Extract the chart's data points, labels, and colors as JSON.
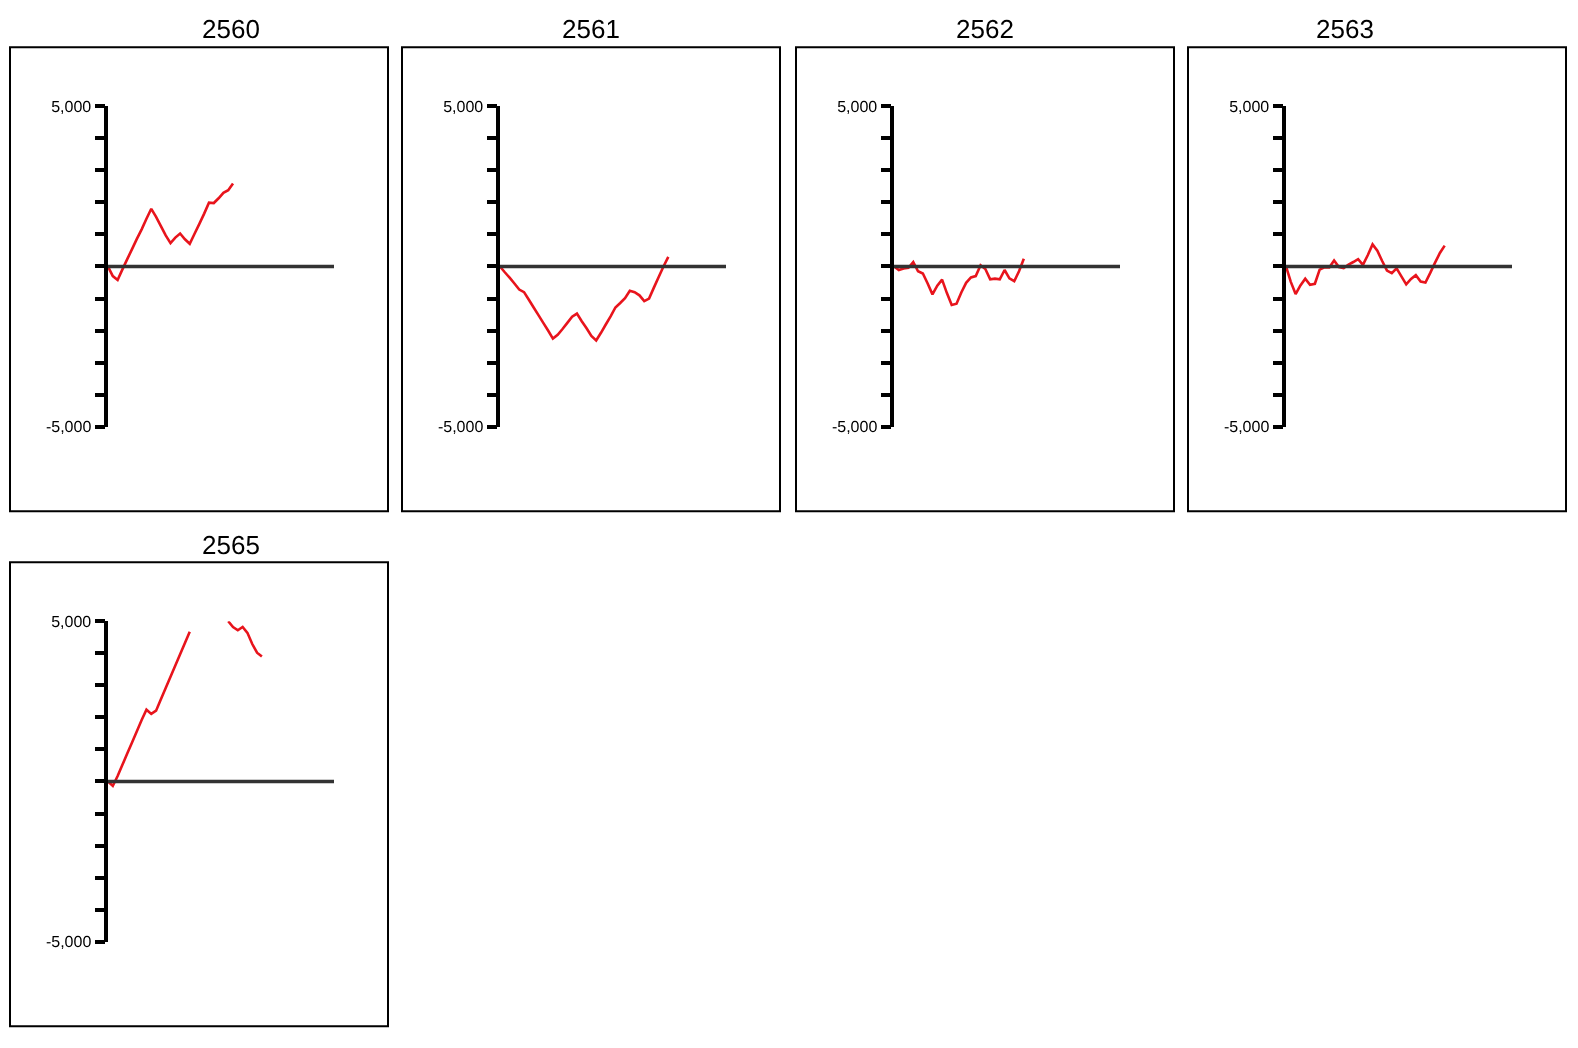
{
  "chart_data": [
    {
      "type": "line",
      "title": "2560",
      "categories": [
        null,
        null,
        null,
        null,
        null,
        null,
        null,
        null,
        null,
        null,
        null,
        null,
        null,
        null,
        null,
        null,
        null,
        null,
        null,
        null,
        null,
        null,
        null,
        null,
        null,
        null,
        null,
        null,
        null,
        null,
        null,
        null,
        null,
        null,
        null,
        null,
        null,
        null,
        null,
        null,
        null,
        null,
        null,
        null,
        null,
        null,
        null,
        null
      ],
      "series": [
        {
          "color": "#e8141c",
          "values": [
            0,
            -300,
            -420,
            -90,
            230,
            540,
            860,
            1160,
            1490,
            1800,
            1550,
            1260,
            970,
            730,
            900,
            1030,
            850,
            710,
            1020,
            1330,
            1650,
            1990,
            1980,
            2130,
            2300,
            2380,
            2590,
            null,
            null,
            null,
            null,
            null,
            null,
            null,
            null,
            null,
            null,
            null,
            null,
            null,
            null,
            null,
            null,
            null,
            null,
            null,
            null,
            null
          ]
        }
      ],
      "ylim": [
        -5000,
        5000
      ],
      "yticks": [
        {
          "value": -5000,
          "label": "-5,000"
        },
        {
          "value": -4000,
          "label": null
        },
        {
          "value": -3000,
          "label": null
        },
        {
          "value": -2000,
          "label": null
        },
        {
          "value": -1000,
          "label": null
        },
        {
          "value": 0,
          "label": null
        },
        {
          "value": 1000,
          "label": null
        },
        {
          "value": 2000,
          "label": null
        },
        {
          "value": 3000,
          "label": null
        },
        {
          "value": 4000,
          "label": null
        },
        {
          "value": 5000,
          "label": "5,000"
        }
      ],
      "ref_lines": [
        {
          "axis": "y",
          "value": 0,
          "color": "#333333"
        }
      ],
      "tick_labels": "y"
    },
    {
      "type": "line",
      "title": "2561",
      "categories": [
        null,
        null,
        null,
        null,
        null,
        null,
        null,
        null,
        null,
        null,
        null,
        null,
        null,
        null,
        null,
        null,
        null,
        null,
        null,
        null,
        null,
        null,
        null,
        null,
        null,
        null,
        null,
        null,
        null,
        null,
        null,
        null,
        null,
        null,
        null,
        null,
        null,
        null,
        null,
        null,
        null,
        null,
        null,
        null,
        null,
        null,
        null,
        null
      ],
      "series": [
        {
          "color": "#e8141c",
          "values": [
            0,
            -180,
            -350,
            -530,
            -720,
            -800,
            -1040,
            -1280,
            -1520,
            -1760,
            -2000,
            -2250,
            -2130,
            -1950,
            -1760,
            -1570,
            -1470,
            -1710,
            -1930,
            -2170,
            -2310,
            -2070,
            -1810,
            -1560,
            -1280,
            -1140,
            -990,
            -760,
            -800,
            -900,
            -1080,
            -1000,
            -660,
            -330,
            0,
            300,
            null,
            null,
            null,
            null,
            null,
            null,
            null,
            null,
            null,
            null,
            null,
            null
          ]
        }
      ],
      "ylim": [
        -5000,
        5000
      ],
      "yticks": [
        {
          "value": -5000,
          "label": "-5,000"
        },
        {
          "value": -4000,
          "label": null
        },
        {
          "value": -3000,
          "label": null
        },
        {
          "value": -2000,
          "label": null
        },
        {
          "value": -1000,
          "label": null
        },
        {
          "value": 0,
          "label": null
        },
        {
          "value": 1000,
          "label": null
        },
        {
          "value": 2000,
          "label": null
        },
        {
          "value": 3000,
          "label": null
        },
        {
          "value": 4000,
          "label": null
        },
        {
          "value": 5000,
          "label": "5,000"
        }
      ],
      "ref_lines": [
        {
          "axis": "y",
          "value": 0,
          "color": "#333333"
        }
      ],
      "tick_labels": "y"
    },
    {
      "type": "line",
      "title": "2562",
      "categories": [
        null,
        null,
        null,
        null,
        null,
        null,
        null,
        null,
        null,
        null,
        null,
        null,
        null,
        null,
        null,
        null,
        null,
        null,
        null,
        null,
        null,
        null,
        null,
        null,
        null,
        null,
        null,
        null,
        null,
        null,
        null,
        null,
        null,
        null,
        null,
        null,
        null,
        null,
        null,
        null,
        null,
        null,
        null,
        null,
        null,
        null,
        null,
        null
      ],
      "series": [
        {
          "color": "#e8141c",
          "values": [
            0,
            -110,
            -60,
            -40,
            140,
            -150,
            -220,
            -530,
            -870,
            -600,
            -410,
            -830,
            -1200,
            -1160,
            -810,
            -510,
            -340,
            -300,
            40,
            -80,
            -400,
            -380,
            -400,
            -110,
            -370,
            -460,
            -150,
            240,
            null,
            null,
            null,
            null,
            null,
            null,
            null,
            null,
            null,
            null,
            null,
            null,
            null,
            null,
            null,
            null,
            null,
            null,
            null,
            null
          ]
        }
      ],
      "ylim": [
        -5000,
        5000
      ],
      "yticks": [
        {
          "value": -5000,
          "label": "-5,000"
        },
        {
          "value": -4000,
          "label": null
        },
        {
          "value": -3000,
          "label": null
        },
        {
          "value": -2000,
          "label": null
        },
        {
          "value": -1000,
          "label": null
        },
        {
          "value": 0,
          "label": null
        },
        {
          "value": 1000,
          "label": null
        },
        {
          "value": 2000,
          "label": null
        },
        {
          "value": 3000,
          "label": null
        },
        {
          "value": 4000,
          "label": null
        },
        {
          "value": 5000,
          "label": "5,000"
        }
      ],
      "ref_lines": [
        {
          "axis": "y",
          "value": 0,
          "color": "#333333"
        }
      ],
      "tick_labels": "y"
    },
    {
      "type": "line",
      "title": "2563",
      "categories": [
        null,
        null,
        null,
        null,
        null,
        null,
        null,
        null,
        null,
        null,
        null,
        null,
        null,
        null,
        null,
        null,
        null,
        null,
        null,
        null,
        null,
        null,
        null,
        null,
        null,
        null,
        null,
        null,
        null,
        null,
        null,
        null,
        null,
        null,
        null,
        null,
        null,
        null,
        null,
        null,
        null,
        null,
        null,
        null,
        null,
        null,
        null,
        null
      ],
      "series": [
        {
          "color": "#e8141c",
          "values": [
            0,
            -480,
            -860,
            -590,
            -380,
            -570,
            -540,
            -100,
            -30,
            -30,
            190,
            -20,
            -50,
            60,
            140,
            230,
            50,
            350,
            690,
            490,
            170,
            -130,
            -210,
            -60,
            -310,
            -560,
            -390,
            -270,
            -470,
            -500,
            -200,
            120,
            420,
            650,
            null,
            null,
            null,
            null,
            null,
            null,
            null,
            null,
            null,
            null,
            null,
            null,
            null,
            null
          ]
        }
      ],
      "ylim": [
        -5000,
        5000
      ],
      "yticks": [
        {
          "value": -5000,
          "label": "-5,000"
        },
        {
          "value": -4000,
          "label": null
        },
        {
          "value": -3000,
          "label": null
        },
        {
          "value": -2000,
          "label": null
        },
        {
          "value": -1000,
          "label": null
        },
        {
          "value": 0,
          "label": null
        },
        {
          "value": 1000,
          "label": null
        },
        {
          "value": 2000,
          "label": null
        },
        {
          "value": 3000,
          "label": null
        },
        {
          "value": 4000,
          "label": null
        },
        {
          "value": 5000,
          "label": "5,000"
        }
      ],
      "ref_lines": [
        {
          "axis": "y",
          "value": 0,
          "color": "#333333"
        }
      ],
      "tick_labels": "y"
    },
    {
      "type": "line",
      "title": "2565",
      "categories": [
        null,
        null,
        null,
        null,
        null,
        null,
        null,
        null,
        null,
        null,
        null,
        null,
        null,
        null,
        null,
        null,
        null,
        null,
        null,
        null,
        null,
        null,
        null,
        null,
        null,
        null,
        null,
        null,
        null,
        null,
        null,
        null,
        null,
        null,
        null,
        null,
        null,
        null,
        null,
        null,
        null,
        null,
        null,
        null,
        null,
        null,
        null,
        null
      ],
      "series": [
        {
          "color": "#e8141c",
          "values": [
            0,
            -140,
            170,
            520,
            870,
            1220,
            1570,
            1920,
            2240,
            2110,
            2210,
            2570,
            2920,
            3270,
            3620,
            3970,
            4320,
            4670,
            null,
            null,
            null,
            null,
            null,
            null,
            null,
            5000,
            4820,
            4720,
            4820,
            4640,
            4290,
            4020,
            3900,
            null,
            null,
            null,
            null,
            null,
            null,
            null,
            null,
            null,
            null,
            null,
            null,
            null,
            null,
            null
          ]
        }
      ],
      "ylim": [
        -5000,
        5000
      ],
      "yticks": [
        {
          "value": -5000,
          "label": "-5,000"
        },
        {
          "value": -4000,
          "label": null
        },
        {
          "value": -3000,
          "label": null
        },
        {
          "value": -2000,
          "label": null
        },
        {
          "value": -1000,
          "label": null
        },
        {
          "value": 0,
          "label": null
        },
        {
          "value": 1000,
          "label": null
        },
        {
          "value": 2000,
          "label": null
        },
        {
          "value": 3000,
          "label": null
        },
        {
          "value": 4000,
          "label": null
        },
        {
          "value": 5000,
          "label": "5,000"
        }
      ],
      "ref_lines": [
        {
          "axis": "y",
          "value": 0,
          "color": "#333333"
        }
      ],
      "tick_labels": "y"
    }
  ]
}
